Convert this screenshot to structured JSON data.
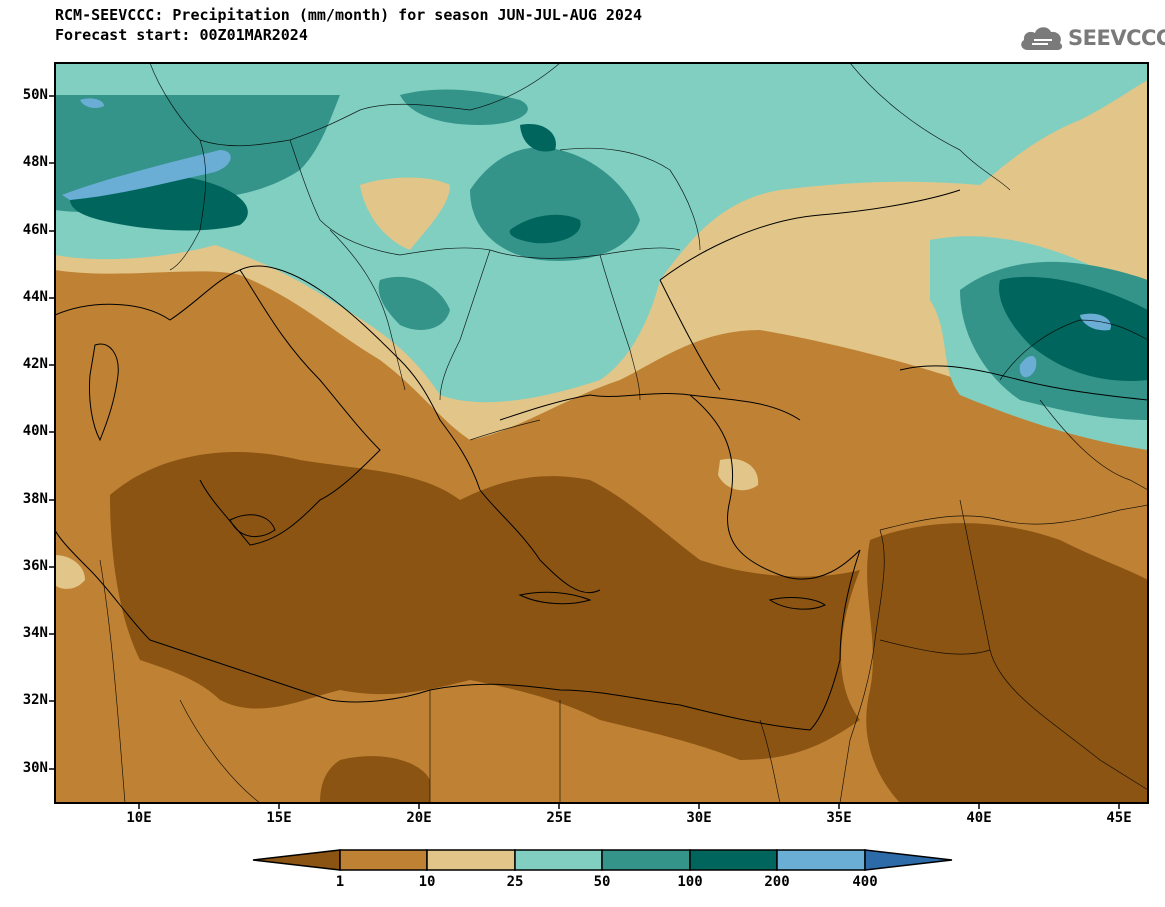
{
  "header": {
    "title": "RCM-SEEVCCC: Precipitation (mm/month) for season JUN-JUL-AUG 2024",
    "subtitle": "Forecast start: 00Z01MAR2024"
  },
  "logo": {
    "text": "SEEVCCC",
    "icon": "cloud-icon"
  },
  "map": {
    "lat_labels": [
      "50N",
      "48N",
      "46N",
      "44N",
      "42N",
      "40N",
      "38N",
      "36N",
      "34N",
      "32N",
      "30N"
    ],
    "lon_labels": [
      "10E",
      "15E",
      "20E",
      "25E",
      "30E",
      "35E",
      "40E",
      "45E"
    ],
    "lat_range": [
      29,
      51
    ],
    "lon_range": [
      7,
      46
    ]
  },
  "colorbar": {
    "labels": [
      "1",
      "10",
      "25",
      "50",
      "100",
      "200",
      "400"
    ],
    "colors": [
      "#8b5412",
      "#bf8234",
      "#e2c588",
      "#80cfc1",
      "#34948a",
      "#00665d",
      "#6aaed6",
      "#2c6aa8"
    ]
  }
}
